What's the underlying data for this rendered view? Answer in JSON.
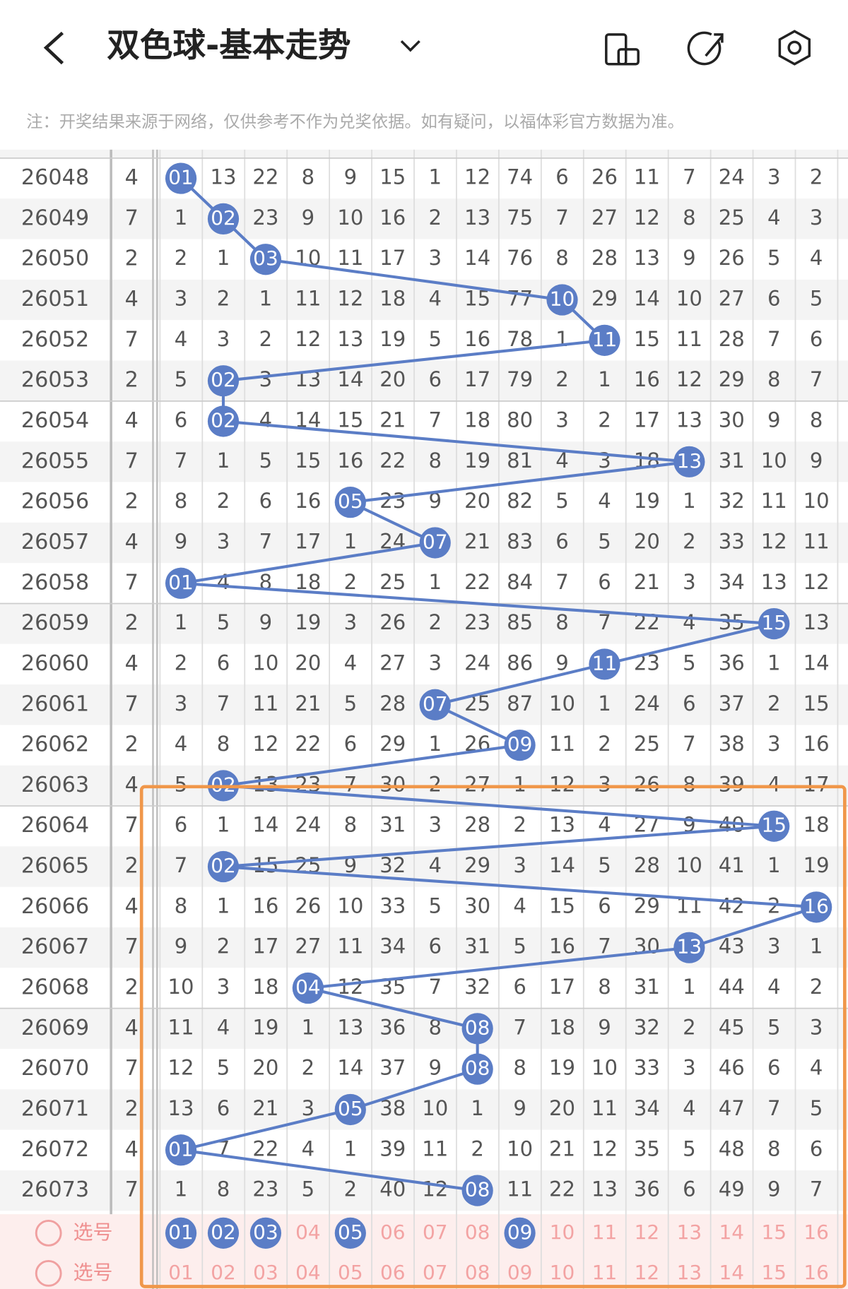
{
  "header": {
    "title": "双色球-基本走势",
    "note": "注：开奖结果来源于网络，仅供参考不作为兑奖依据。如有疑问，以福体彩官方数据为准。"
  },
  "table": {
    "rows": [
      {
        "issue": "26048",
        "col": "4",
        "cells": [
          {
            "ball": "01"
          },
          "13",
          "22",
          "8",
          "9",
          "15",
          "1",
          "12",
          "74",
          "6",
          "26",
          "11",
          "7",
          "24",
          "3",
          "2"
        ]
      },
      {
        "issue": "26049",
        "col": "7",
        "cells": [
          "1",
          {
            "ball": "02"
          },
          "23",
          "9",
          "10",
          "16",
          "2",
          "13",
          "75",
          "7",
          "27",
          "12",
          "8",
          "25",
          "4",
          "3"
        ]
      },
      {
        "issue": "26050",
        "col": "2",
        "cells": [
          "2",
          "1",
          {
            "ball": "03"
          },
          "10",
          "11",
          "17",
          "3",
          "14",
          "76",
          "8",
          "28",
          "13",
          "9",
          "26",
          "5",
          "4"
        ]
      },
      {
        "issue": "26051",
        "col": "4",
        "cells": [
          "3",
          "2",
          "1",
          "11",
          "12",
          "18",
          "4",
          "15",
          "77",
          {
            "ball": "10"
          },
          "29",
          "14",
          "10",
          "27",
          "6",
          "5"
        ]
      },
      {
        "issue": "26052",
        "col": "7",
        "cells": [
          "4",
          "3",
          "2",
          "12",
          "13",
          "19",
          "5",
          "16",
          "78",
          "1",
          {
            "ball": "11"
          },
          "15",
          "11",
          "28",
          "7",
          "6"
        ]
      },
      {
        "issue": "26053",
        "col": "2",
        "cells": [
          "5",
          {
            "ball": "02"
          },
          "3",
          "13",
          "14",
          "20",
          "6",
          "17",
          "79",
          "2",
          "1",
          "16",
          "12",
          "29",
          "8",
          "7"
        ]
      },
      {
        "issue": "26054",
        "col": "4",
        "cells": [
          "6",
          {
            "ball": "02"
          },
          "4",
          "14",
          "15",
          "21",
          "7",
          "18",
          "80",
          "3",
          "2",
          "17",
          "13",
          "30",
          "9",
          "8"
        ]
      },
      {
        "issue": "26055",
        "col": "7",
        "cells": [
          "7",
          "1",
          "5",
          "15",
          "16",
          "22",
          "8",
          "19",
          "81",
          "4",
          "3",
          "18",
          {
            "ball": "13"
          },
          "31",
          "10",
          "9"
        ]
      },
      {
        "issue": "26056",
        "col": "2",
        "cells": [
          "8",
          "2",
          "6",
          "16",
          {
            "ball": "05"
          },
          "23",
          "9",
          "20",
          "82",
          "5",
          "4",
          "19",
          "1",
          "32",
          "11",
          "10"
        ]
      },
      {
        "issue": "26057",
        "col": "4",
        "cells": [
          "9",
          "3",
          "7",
          "17",
          "1",
          "24",
          {
            "ball": "07"
          },
          "21",
          "83",
          "6",
          "5",
          "20",
          "2",
          "33",
          "12",
          "11"
        ]
      },
      {
        "issue": "26058",
        "col": "7",
        "cells": [
          {
            "ball": "01"
          },
          "4",
          "8",
          "18",
          "2",
          "25",
          "1",
          "22",
          "84",
          "7",
          "6",
          "21",
          "3",
          "34",
          "13",
          "12"
        ]
      },
      {
        "issue": "26059",
        "col": "2",
        "cells": [
          "1",
          "5",
          "9",
          "19",
          "3",
          "26",
          "2",
          "23",
          "85",
          "8",
          "7",
          "22",
          "4",
          "35",
          {
            "ball": "15"
          },
          "13"
        ]
      },
      {
        "issue": "26060",
        "col": "4",
        "cells": [
          "2",
          "6",
          "10",
          "20",
          "4",
          "27",
          "3",
          "24",
          "86",
          "9",
          {
            "ball": "11"
          },
          "23",
          "5",
          "36",
          "1",
          "14"
        ]
      },
      {
        "issue": "26061",
        "col": "7",
        "cells": [
          "3",
          "7",
          "11",
          "21",
          "5",
          "28",
          {
            "ball": "07"
          },
          "25",
          "87",
          "10",
          "1",
          "24",
          "6",
          "37",
          "2",
          "15"
        ]
      },
      {
        "issue": "26062",
        "col": "2",
        "cells": [
          "4",
          "8",
          "12",
          "22",
          "6",
          "29",
          "1",
          "26",
          {
            "ball": "09"
          },
          "11",
          "2",
          "25",
          "7",
          "38",
          "3",
          "16"
        ]
      },
      {
        "issue": "26063",
        "col": "4",
        "cells": [
          "5",
          {
            "ball": "02"
          },
          "13",
          "23",
          "7",
          "30",
          "2",
          "27",
          "1",
          "12",
          "3",
          "26",
          "8",
          "39",
          "4",
          "17"
        ]
      },
      {
        "issue": "26064",
        "col": "7",
        "cells": [
          "6",
          "1",
          "14",
          "24",
          "8",
          "31",
          "3",
          "28",
          "2",
          "13",
          "4",
          "27",
          "9",
          "40",
          {
            "ball": "15"
          },
          "18"
        ]
      },
      {
        "issue": "26065",
        "col": "2",
        "cells": [
          "7",
          {
            "ball": "02"
          },
          "15",
          "25",
          "9",
          "32",
          "4",
          "29",
          "3",
          "14",
          "5",
          "28",
          "10",
          "41",
          "1",
          "19"
        ]
      },
      {
        "issue": "26066",
        "col": "4",
        "cells": [
          "8",
          "1",
          "16",
          "26",
          "10",
          "33",
          "5",
          "30",
          "4",
          "15",
          "6",
          "29",
          "11",
          "42",
          "2",
          {
            "ball": "16"
          }
        ]
      },
      {
        "issue": "26067",
        "col": "7",
        "cells": [
          "9",
          "2",
          "17",
          "27",
          "11",
          "34",
          "6",
          "31",
          "5",
          "16",
          "7",
          "30",
          {
            "ball": "13"
          },
          "43",
          "3",
          "1"
        ]
      },
      {
        "issue": "26068",
        "col": "2",
        "cells": [
          "10",
          "3",
          "18",
          {
            "ball": "04"
          },
          "12",
          "35",
          "7",
          "32",
          "6",
          "17",
          "8",
          "31",
          "1",
          "44",
          "4",
          "2"
        ]
      },
      {
        "issue": "26069",
        "col": "4",
        "cells": [
          "11",
          "4",
          "19",
          "1",
          "13",
          "36",
          "8",
          {
            "ball": "08"
          },
          "7",
          "18",
          "9",
          "32",
          "2",
          "45",
          "5",
          "3"
        ]
      },
      {
        "issue": "26070",
        "col": "7",
        "cells": [
          "12",
          "5",
          "20",
          "2",
          "14",
          "37",
          "9",
          {
            "ball": "08"
          },
          "8",
          "19",
          "10",
          "33",
          "3",
          "46",
          "6",
          "4"
        ]
      },
      {
        "issue": "26071",
        "col": "2",
        "cells": [
          "13",
          "6",
          "21",
          "3",
          {
            "ball": "05"
          },
          "38",
          "10",
          "1",
          "9",
          "20",
          "11",
          "34",
          "4",
          "47",
          "7",
          "5"
        ]
      },
      {
        "issue": "26072",
        "col": "4",
        "cells": [
          {
            "ball": "01"
          },
          "7",
          "22",
          "4",
          "1",
          "39",
          "11",
          "2",
          "10",
          "21",
          "12",
          "35",
          "5",
          "48",
          "8",
          "6"
        ]
      },
      {
        "issue": "26073",
        "col": "7",
        "cells": [
          "1",
          "8",
          "23",
          "5",
          "2",
          "40",
          "12",
          {
            "ball": "08"
          },
          "11",
          "22",
          "13",
          "36",
          "6",
          "49",
          "9",
          "7"
        ]
      }
    ]
  },
  "picker": [
    {
      "label": "选号",
      "numbers": [
        {
          "n": "01",
          "selected": true
        },
        {
          "n": "02",
          "selected": true
        },
        {
          "n": "03",
          "selected": true
        },
        {
          "n": "04",
          "selected": false
        },
        {
          "n": "05",
          "selected": true
        },
        {
          "n": "06",
          "selected": false
        },
        {
          "n": "07",
          "selected": false
        },
        {
          "n": "08",
          "selected": false
        },
        {
          "n": "09",
          "selected": true
        },
        {
          "n": "10",
          "selected": false
        },
        {
          "n": "11",
          "selected": false
        },
        {
          "n": "12",
          "selected": false
        },
        {
          "n": "13",
          "selected": false
        },
        {
          "n": "14",
          "selected": false
        },
        {
          "n": "15",
          "selected": false
        },
        {
          "n": "16",
          "selected": false
        }
      ]
    },
    {
      "label": "选号",
      "numbers": [
        {
          "n": "01",
          "selected": false
        },
        {
          "n": "02",
          "selected": false
        },
        {
          "n": "03",
          "selected": false
        },
        {
          "n": "04",
          "selected": false
        },
        {
          "n": "05",
          "selected": false
        },
        {
          "n": "06",
          "selected": false
        },
        {
          "n": "07",
          "selected": false
        },
        {
          "n": "08",
          "selected": false
        },
        {
          "n": "09",
          "selected": false
        },
        {
          "n": "10",
          "selected": false
        },
        {
          "n": "11",
          "selected": false
        },
        {
          "n": "12",
          "selected": false
        },
        {
          "n": "13",
          "selected": false
        },
        {
          "n": "14",
          "selected": false
        },
        {
          "n": "15",
          "selected": false
        },
        {
          "n": "16",
          "selected": false
        }
      ]
    }
  ]
}
